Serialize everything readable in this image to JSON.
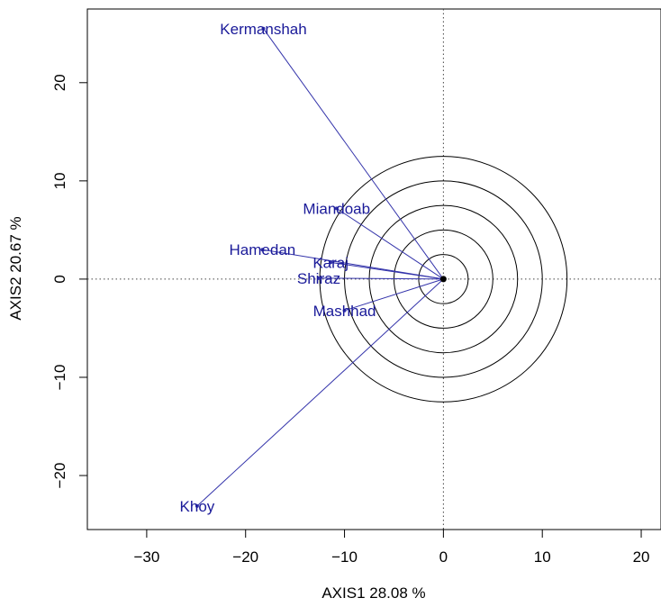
{
  "chart_data": {
    "type": "scatter",
    "subtype": "biplot",
    "title": "",
    "xlabel": "AXIS1 28.08 %",
    "ylabel": "AXIS2 20.67 %",
    "xlim": [
      -36,
      22
    ],
    "ylim": [
      -25.5,
      27.5
    ],
    "x_ticks": [
      -30,
      -20,
      -10,
      0,
      10,
      20
    ],
    "x_tick_labels": [
      "−30",
      "−20",
      "−10",
      "0",
      "10",
      "20"
    ],
    "y_ticks": [
      -20,
      -10,
      0,
      10,
      20
    ],
    "y_tick_labels": [
      "−20",
      "−10",
      "0",
      "10",
      "20"
    ],
    "grid": false,
    "reference_lines": {
      "x": 0,
      "y": 0,
      "style": "dotted"
    },
    "origin": [
      0,
      0
    ],
    "concentric_circles": {
      "center": [
        0,
        0
      ],
      "radii": [
        2.5,
        5,
        7.5,
        10,
        12.5
      ]
    },
    "vector_color": "#3333aa",
    "label_color": "#1a1a99",
    "points": [
      {
        "label": "Kermanshah",
        "x": -18.2,
        "y": 25.5
      },
      {
        "label": "Miandoab",
        "x": -10.8,
        "y": 7.2
      },
      {
        "label": "Hamedan",
        "x": -18.3,
        "y": 3.0
      },
      {
        "label": "Karaj",
        "x": -11.4,
        "y": 1.7
      },
      {
        "label": "Shiraz",
        "x": -12.6,
        "y": 0.1
      },
      {
        "label": "Mashhad",
        "x": -10.0,
        "y": -3.2
      },
      {
        "label": "Khoy",
        "x": -24.9,
        "y": -23.1
      }
    ]
  }
}
